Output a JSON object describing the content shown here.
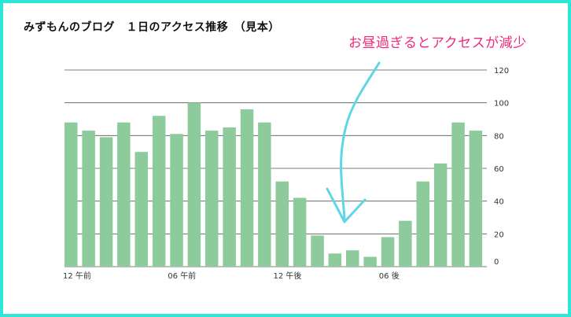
{
  "title": "みずもんのブログ　１日のアクセス推移　（見本）",
  "annotation": "お昼過ぎるとアクセスが減少",
  "colors": {
    "frame": "#2ee6d6",
    "bar": "#8ecb9c",
    "annotation": "#ef2a7b",
    "arrow": "#5fd6e6",
    "grid": "#555555"
  },
  "chart_data": {
    "type": "bar",
    "title": "みずもんのブログ　１日のアクセス推移　（見本）",
    "categories": [
      "0",
      "1",
      "2",
      "3",
      "4",
      "5",
      "6",
      "7",
      "8",
      "9",
      "10",
      "11",
      "12",
      "13",
      "14",
      "15",
      "16",
      "17",
      "18",
      "19",
      "20",
      "21",
      "22",
      "23"
    ],
    "x_tick_labels": [
      {
        "index": 0,
        "label": "12 午前"
      },
      {
        "index": 6,
        "label": "06 午前"
      },
      {
        "index": 12,
        "label": "12 午後"
      },
      {
        "index": 18,
        "label": "06 後"
      }
    ],
    "values": [
      88,
      83,
      79,
      88,
      70,
      92,
      81,
      100,
      83,
      85,
      96,
      88,
      52,
      42,
      19,
      8,
      10,
      6,
      18,
      28,
      52,
      63,
      88,
      83
    ],
    "ylim": [
      0,
      120
    ],
    "yticks": [
      0,
      20,
      40,
      60,
      80,
      100,
      120
    ],
    "y_axis_side": "right",
    "grid": true,
    "xlabel": "",
    "ylabel": ""
  }
}
